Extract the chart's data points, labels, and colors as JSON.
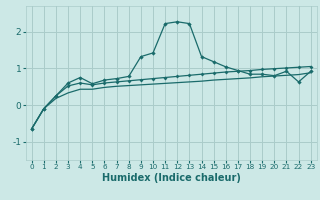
{
  "title": "",
  "xlabel": "Humidex (Indice chaleur)",
  "ylabel": "",
  "bg_color": "#cce8e6",
  "grid_color": "#aaccca",
  "line_color": "#1a6b6b",
  "xlim": [
    -0.5,
    23.5
  ],
  "ylim": [
    -1.5,
    2.7
  ],
  "yticks": [
    -1,
    0,
    1,
    2
  ],
  "xticks": [
    0,
    1,
    2,
    3,
    4,
    5,
    6,
    7,
    8,
    9,
    10,
    11,
    12,
    13,
    14,
    15,
    16,
    17,
    18,
    19,
    20,
    21,
    22,
    23
  ],
  "line1_x": [
    0,
    1,
    2,
    3,
    4,
    5,
    6,
    7,
    8,
    9,
    10,
    11,
    12,
    13,
    14,
    15,
    16,
    17,
    18,
    19,
    20,
    21,
    22,
    23
  ],
  "line1_y": [
    -0.65,
    -0.1,
    0.25,
    0.6,
    0.75,
    0.58,
    0.68,
    0.72,
    0.78,
    1.32,
    1.42,
    2.22,
    2.27,
    2.22,
    1.32,
    1.18,
    1.04,
    0.94,
    0.84,
    0.84,
    0.8,
    0.92,
    0.63,
    0.92
  ],
  "line2_x": [
    0,
    1,
    2,
    3,
    4,
    5,
    6,
    7,
    8,
    9,
    10,
    11,
    12,
    13,
    14,
    15,
    16,
    17,
    18,
    19,
    20,
    21,
    22,
    23
  ],
  "line2_y": [
    -0.65,
    -0.1,
    0.25,
    0.52,
    0.6,
    0.55,
    0.6,
    0.63,
    0.66,
    0.69,
    0.72,
    0.75,
    0.78,
    0.81,
    0.84,
    0.87,
    0.9,
    0.92,
    0.94,
    0.97,
    0.99,
    1.01,
    1.03,
    1.05
  ],
  "line3_x": [
    0,
    1,
    2,
    3,
    4,
    5,
    6,
    7,
    8,
    9,
    10,
    11,
    12,
    13,
    14,
    15,
    16,
    17,
    18,
    19,
    20,
    21,
    22,
    23
  ],
  "line3_y": [
    -0.65,
    -0.1,
    0.18,
    0.33,
    0.43,
    0.43,
    0.48,
    0.51,
    0.53,
    0.55,
    0.57,
    0.59,
    0.61,
    0.63,
    0.65,
    0.68,
    0.7,
    0.72,
    0.74,
    0.77,
    0.79,
    0.81,
    0.83,
    0.88
  ]
}
